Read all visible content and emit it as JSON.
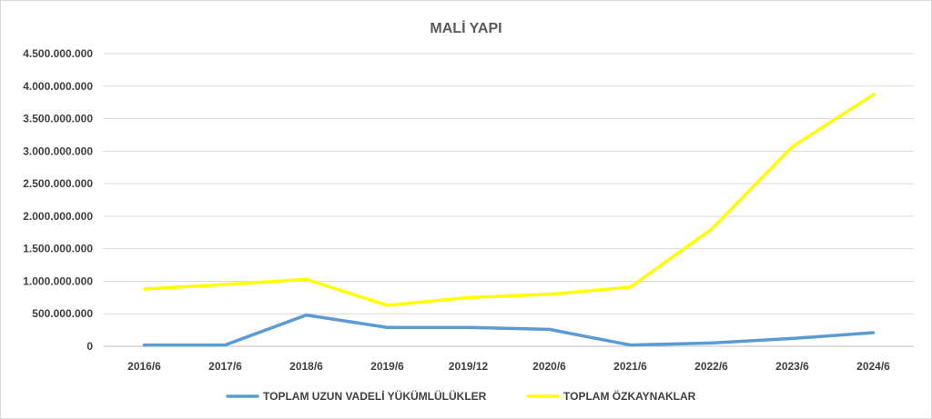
{
  "chart_data": {
    "type": "line",
    "title": "MALİ YAPI",
    "categories": [
      "2016/6",
      "2017/6",
      "2018/6",
      "2019/6",
      "2019/12",
      "2020/6",
      "2021/6",
      "2022/6",
      "2023/6",
      "2024/6"
    ],
    "y_tick_labels": [
      "0",
      "500.000.000",
      "1.000.000.000",
      "1.500.000.000",
      "2.000.000.000",
      "2.500.000.000",
      "3.000.000.000",
      "3.500.000.000",
      "4.000.000.000",
      "4.500.000.000"
    ],
    "ylim": [
      0,
      4500000000
    ],
    "grid": true,
    "legend_position": "bottom",
    "series": [
      {
        "name": "TOPLAM UZUN VADELİ YÜKÜMLÜLÜKLER",
        "color": "#5B9BD5",
        "values": [
          20000000,
          20000000,
          480000000,
          290000000,
          290000000,
          260000000,
          20000000,
          50000000,
          120000000,
          210000000
        ]
      },
      {
        "name": "TOPLAM ÖZKAYNAKLAR",
        "color": "#FFFF00",
        "values": [
          880000000,
          950000000,
          1030000000,
          630000000,
          750000000,
          800000000,
          910000000,
          1800000000,
          3070000000,
          3870000000
        ]
      }
    ]
  }
}
